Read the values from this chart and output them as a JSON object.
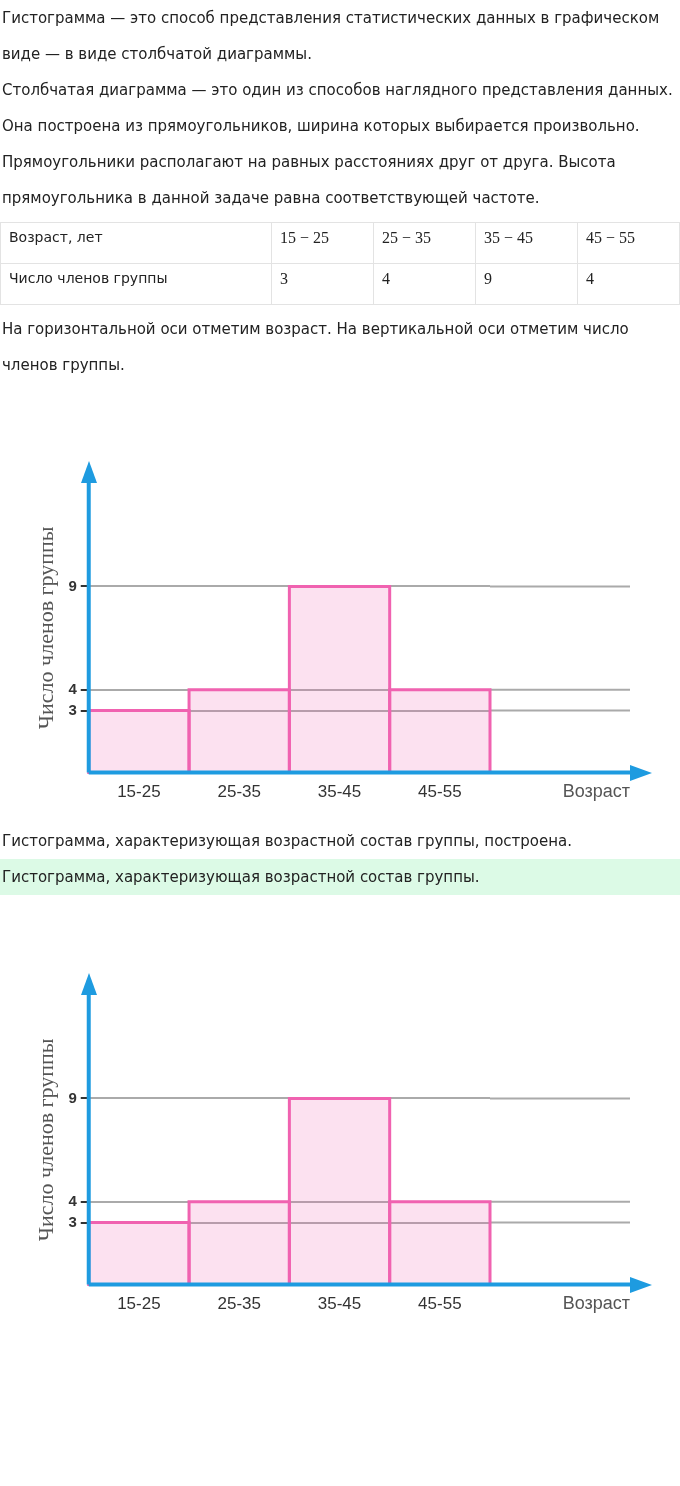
{
  "chart_data": [
    {
      "type": "other",
      "annotations": [
        "Гистограмма — это способ представления статистических данных в графическом виде — в виде столбчатой диаграммы.",
        "Столбчатая диаграмма — это один из способов наглядного представления данных. Она построена из прямоугольников, ширина которых выбирается произвольно. Прямоугольники располагают на равных расстояниях друг от друга. Высота прямоугольника в данной задаче равна соответствующей частоте."
      ],
      "xlabel": "Возраст, лет",
      "ylabel": "Число членов группы",
      "categories": [
        "15 − 25",
        "25 − 35",
        "35 − 45",
        "45 − 55"
      ],
      "values": [
        3,
        4,
        9,
        4
      ],
      "data_labels": true
    },
    {
      "type": "bar",
      "annotations": [
        "На горизонтальной оси отметим возраст. На вертикальной оси отметим число членов группы."
      ],
      "categories": [
        "15-25",
        "25-35",
        "35-45",
        "45-55"
      ],
      "values": [
        3,
        4,
        9,
        4
      ],
      "color": "#f062b0",
      "xlabel": "Возраст",
      "ylabel": "Число членов группы",
      "ylim": [
        0,
        14
      ],
      "yticks": [
        3,
        4,
        9
      ],
      "grid": "y"
    },
    {
      "type": "bar",
      "annotations": [
        "Гистограмма, характеризующая возрастной состав группы, построена.",
        "Гистограмма, характеризующая возрастной состав группы."
      ],
      "categories": [
        "15-25",
        "25-35",
        "35-45",
        "45-55"
      ],
      "values": [
        3,
        4,
        9,
        4
      ],
      "color": "#f062b0",
      "xlabel": "Возраст",
      "ylabel": "Число членов группы",
      "ylim": [
        0,
        14
      ],
      "yticks": [
        3,
        4,
        9
      ],
      "grid": "y"
    }
  ]
}
